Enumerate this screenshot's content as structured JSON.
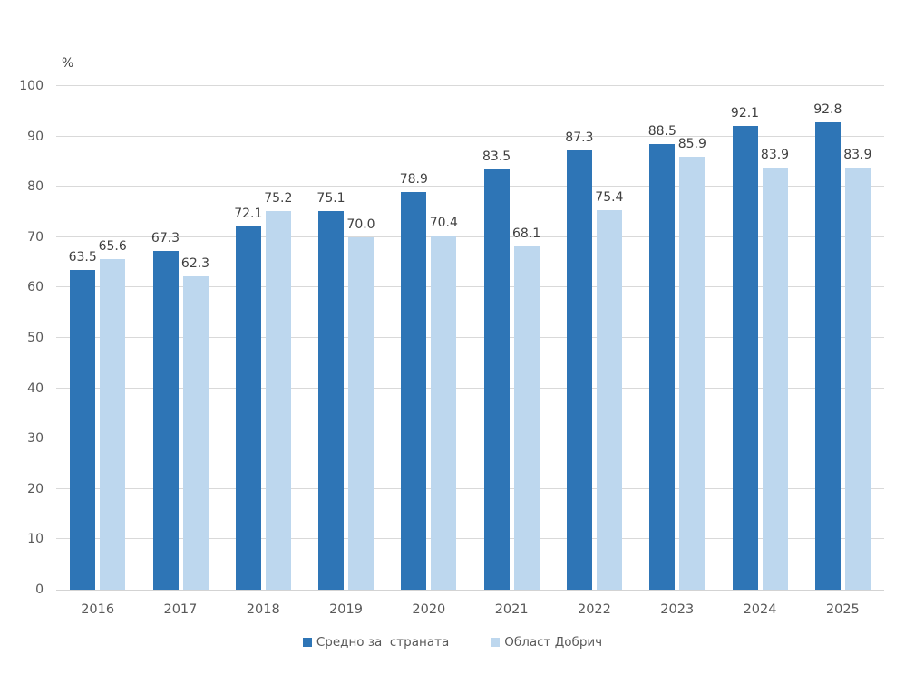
{
  "chart_data": {
    "type": "bar",
    "title": "",
    "unit_label": "%",
    "categories": [
      "2016",
      "2017",
      "2018",
      "2019",
      "2020",
      "2021",
      "2022",
      "2023",
      "2024",
      "2025"
    ],
    "series": [
      {
        "name": "Средно за  страната",
        "color": "#2E75B6",
        "values": [
          63.5,
          67.3,
          72.1,
          75.1,
          78.9,
          83.5,
          87.3,
          88.5,
          92.1,
          92.8
        ]
      },
      {
        "name": "Област Добрич",
        "color": "#BDD7EE",
        "values": [
          65.6,
          62.3,
          75.2,
          70.0,
          70.4,
          68.1,
          75.4,
          85.9,
          83.9,
          83.9
        ]
      }
    ],
    "ylim": [
      0,
      100
    ],
    "ytick_step": 10,
    "yticks": [
      0,
      10,
      20,
      30,
      40,
      50,
      60,
      70,
      80,
      90,
      100
    ],
    "grid": true,
    "legend_position": "bottom",
    "data_label_decimals": 1
  },
  "colors": {
    "grid": "#D9D9D9",
    "axis_text": "#595959",
    "data_label_text": "#404040",
    "background": "#FFFFFF"
  }
}
